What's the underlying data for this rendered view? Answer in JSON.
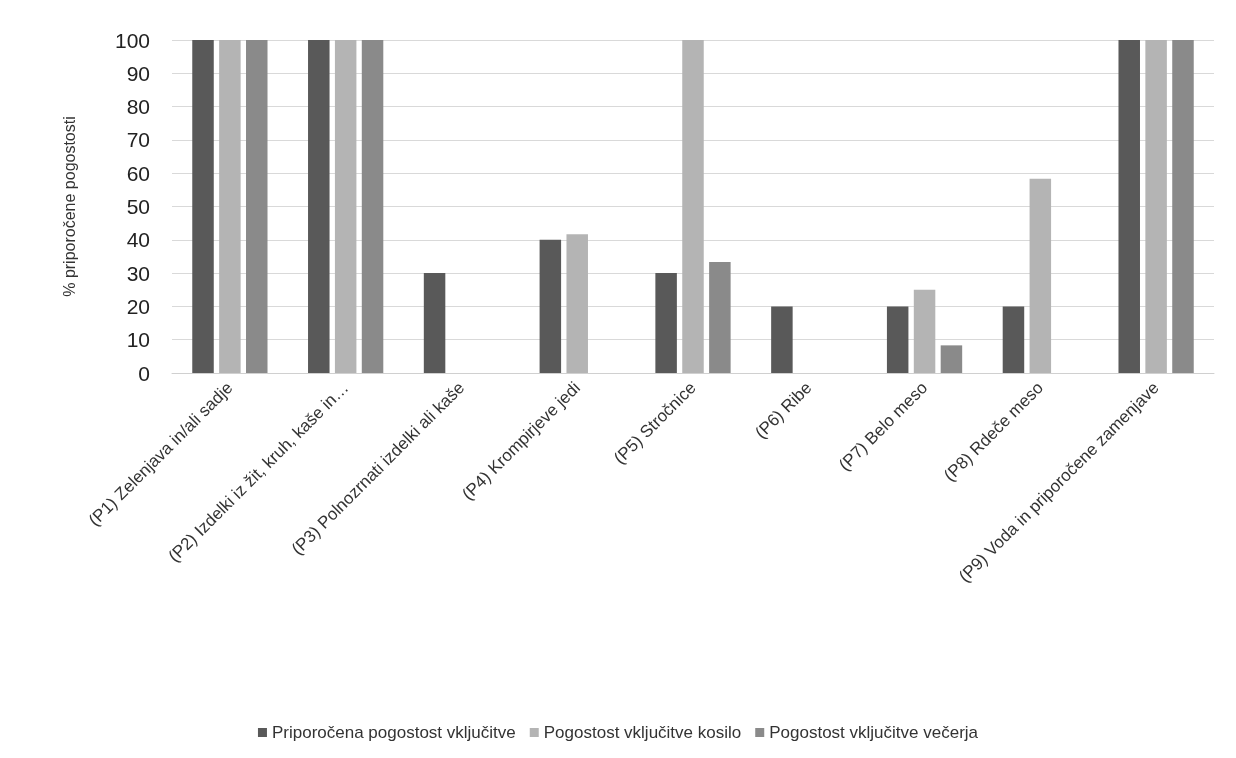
{
  "chart_data": {
    "type": "bar",
    "ylabel": "% priporočene pogostosti",
    "categories": [
      "(P1) Zelenjava in/ali sadje",
      "(P2) Izdelki iz žit, kruh, kaše in…",
      "(P3) Polnozrnati izdelki ali kaše",
      "(P4) Krompirjeve jedi",
      "(P5) Stročnice",
      "(P6) Ribe",
      "(P7) Belo meso",
      "(P8) Rdeče meso",
      "(P9) Voda in priporočene zamenjave"
    ],
    "series": [
      {
        "name": "Priporočena pogostost vključitve",
        "color": "#595959",
        "values": [
          100,
          100,
          30,
          40,
          30,
          20,
          20,
          20,
          100
        ]
      },
      {
        "name": "Pogostost vključitve kosilo",
        "color": "#b4b4b4",
        "values": [
          100,
          100,
          0,
          41.7,
          100,
          0,
          25,
          58.3,
          100
        ]
      },
      {
        "name": "Pogostost vključitve večerja",
        "color": "#8a8a8a",
        "values": [
          100,
          100,
          0,
          0,
          33.3,
          0,
          8.3,
          0,
          100
        ]
      }
    ],
    "ylim": [
      0,
      100
    ],
    "yticks": [
      0,
      10,
      20,
      30,
      40,
      50,
      60,
      70,
      80,
      90,
      100
    ],
    "grid": "y",
    "legend": "bottom"
  }
}
